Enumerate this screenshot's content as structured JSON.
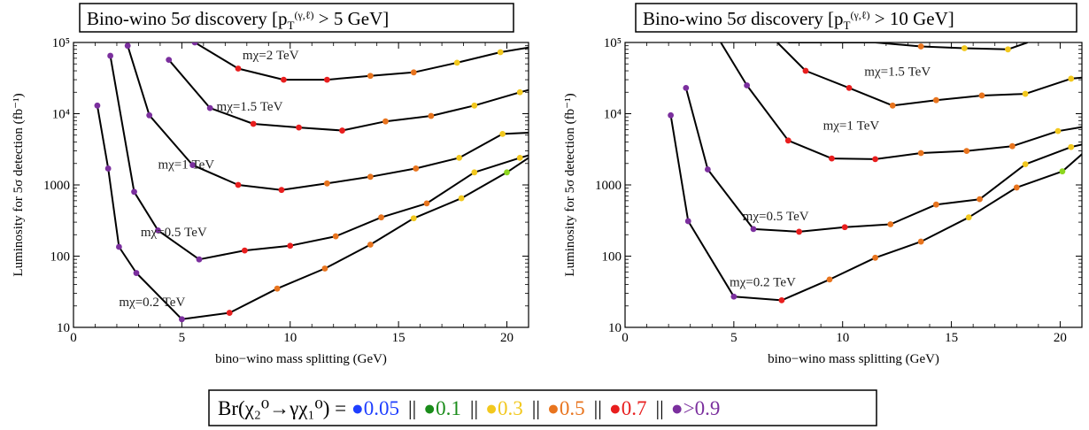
{
  "chart_data": [
    {
      "type": "line",
      "title": "Bino-wino 5σ discovery [pT(γ,ℓ) > 5 GeV]",
      "title_parts": {
        "main": "Bino-wino 5σ discovery [p",
        "sub": "T",
        "sup": "(γ,ℓ)",
        "tail": " > 5 GeV]"
      },
      "xlabel": "bino−wino mass splitting (GeV)",
      "ylabel": "Luminosity for 5σ detection (fb⁻¹)",
      "xlim": [
        0,
        21
      ],
      "ylim": [
        10,
        100000
      ],
      "yscale": "log",
      "xticks": [
        0,
        5,
        10,
        15,
        20
      ],
      "yticks": [
        10,
        100,
        1000,
        10000,
        100000
      ],
      "ytick_labels": [
        "10",
        "100",
        "1000",
        "10⁴",
        "10⁵"
      ],
      "grid": false,
      "series": [
        {
          "name": "mχ=0.2 TeV",
          "label_at": [
            2.1,
            20
          ],
          "points": [
            [
              1.1,
              13000,
              "purple"
            ],
            [
              1.6,
              1700,
              "purple"
            ],
            [
              2.1,
              135,
              "purple"
            ],
            [
              2.9,
              58,
              "purple"
            ],
            [
              5.0,
              13,
              "purple"
            ],
            [
              7.2,
              16,
              "red"
            ],
            [
              9.4,
              35,
              "orange"
            ],
            [
              11.6,
              67,
              "orange"
            ],
            [
              13.7,
              145,
              "orange"
            ],
            [
              15.7,
              340,
              "yellow"
            ],
            [
              17.9,
              650,
              "yellow"
            ],
            [
              20.0,
              1500,
              "green"
            ],
            [
              21.0,
              2400,
              "none"
            ]
          ]
        },
        {
          "name": "mχ=0.5 TeV",
          "label_at": [
            3.1,
            190
          ],
          "points": [
            [
              1.7,
              65000,
              "purple"
            ],
            [
              2.8,
              800,
              "purple"
            ],
            [
              3.9,
              230,
              "purple"
            ],
            [
              5.8,
              90,
              "purple"
            ],
            [
              7.9,
              120,
              "red"
            ],
            [
              10.0,
              140,
              "red"
            ],
            [
              12.1,
              190,
              "orange"
            ],
            [
              14.2,
              350,
              "orange"
            ],
            [
              16.3,
              550,
              "orange"
            ],
            [
              18.5,
              1500,
              "yellow"
            ],
            [
              20.6,
              2400,
              "yellow"
            ],
            [
              21.0,
              2600,
              "none"
            ]
          ]
        },
        {
          "name": "mχ=1 TeV",
          "label_at": [
            3.9,
            1700
          ],
          "points": [
            [
              2.5,
              90000,
              "purple"
            ],
            [
              3.5,
              9500,
              "purple"
            ],
            [
              5.5,
              1900,
              "purple"
            ],
            [
              7.6,
              1000,
              "red"
            ],
            [
              9.6,
              850,
              "red"
            ],
            [
              11.7,
              1050,
              "orange"
            ],
            [
              13.7,
              1300,
              "orange"
            ],
            [
              15.8,
              1700,
              "orange"
            ],
            [
              17.8,
              2400,
              "yellow"
            ],
            [
              19.8,
              5200,
              "yellow"
            ],
            [
              21.0,
              5400,
              "none"
            ]
          ]
        },
        {
          "name": "mχ=1.5 TeV",
          "label_at": [
            6.6,
            11000
          ],
          "points": [
            [
              4.4,
              57000,
              "purple"
            ],
            [
              6.3,
              12000,
              "purple"
            ],
            [
              8.3,
              7200,
              "red"
            ],
            [
              10.4,
              6400,
              "red"
            ],
            [
              12.4,
              5800,
              "red"
            ],
            [
              14.4,
              7800,
              "orange"
            ],
            [
              16.5,
              9300,
              "orange"
            ],
            [
              18.5,
              13000,
              "yellow"
            ],
            [
              20.6,
              20000,
              "yellow"
            ],
            [
              21.0,
              21500,
              "none"
            ]
          ]
        },
        {
          "name": "mχ=2 TeV",
          "label_at": [
            7.8,
            58000
          ],
          "points": [
            [
              5.6,
              100000,
              "purple"
            ],
            [
              7.6,
              43000,
              "red"
            ],
            [
              9.7,
              30000,
              "red"
            ],
            [
              11.7,
              30000,
              "red"
            ],
            [
              13.7,
              34000,
              "orange"
            ],
            [
              15.7,
              38000,
              "orange"
            ],
            [
              17.7,
              52000,
              "yellow"
            ],
            [
              19.7,
              73000,
              "yellow"
            ],
            [
              21.0,
              85000,
              "none"
            ]
          ]
        }
      ]
    },
    {
      "type": "line",
      "title": "Bino-wino 5σ discovery [pT(γ,ℓ) > 10 GeV]",
      "title_parts": {
        "main": "Bino-wino 5σ discovery [p",
        "sub": "T",
        "sup": "(γ,ℓ)",
        "tail": " > 10 GeV]"
      },
      "xlabel": "bino−wino mass splitting (GeV)",
      "ylabel": "Luminosity for 5σ detection (fb⁻¹)",
      "xlim": [
        0,
        21
      ],
      "ylim": [
        10,
        100000
      ],
      "yscale": "log",
      "xticks": [
        0,
        5,
        10,
        15,
        20
      ],
      "yticks": [
        10,
        100,
        1000,
        10000,
        100000
      ],
      "ytick_labels": [
        "10",
        "100",
        "1000",
        "10⁴",
        "10⁵"
      ],
      "grid": false,
      "series": [
        {
          "name": "mχ=0.2 TeV",
          "label_at": [
            4.8,
            38
          ],
          "points": [
            [
              2.1,
              9500,
              "purple"
            ],
            [
              2.9,
              310,
              "purple"
            ],
            [
              5.0,
              27,
              "purple"
            ],
            [
              7.2,
              24,
              "red"
            ],
            [
              9.4,
              47,
              "orange"
            ],
            [
              11.5,
              95,
              "orange"
            ],
            [
              13.6,
              160,
              "orange"
            ],
            [
              15.8,
              350,
              "yellow"
            ],
            [
              18.0,
              920,
              "orange"
            ],
            [
              20.1,
              1550,
              "green"
            ],
            [
              21.0,
              2700,
              "none"
            ]
          ]
        },
        {
          "name": "mχ=0.5 TeV",
          "label_at": [
            5.4,
            320
          ],
          "points": [
            [
              2.8,
              23000,
              "purple"
            ],
            [
              3.8,
              1650,
              "purple"
            ],
            [
              5.9,
              240,
              "purple"
            ],
            [
              8.0,
              220,
              "red"
            ],
            [
              10.1,
              255,
              "red"
            ],
            [
              12.2,
              280,
              "orange"
            ],
            [
              14.3,
              530,
              "orange"
            ],
            [
              16.3,
              630,
              "orange"
            ],
            [
              18.4,
              1950,
              "yellow"
            ],
            [
              20.5,
              3400,
              "yellow"
            ],
            [
              21.0,
              3700,
              "none"
            ]
          ]
        },
        {
          "name": "mχ=1 TeV",
          "label_at": [
            9.1,
            6000
          ],
          "points": [
            [
              4.4,
              100000,
              "none"
            ],
            [
              5.6,
              25000,
              "purple"
            ],
            [
              7.5,
              4200,
              "red"
            ],
            [
              9.5,
              2350,
              "red"
            ],
            [
              11.5,
              2300,
              "red"
            ],
            [
              13.6,
              2800,
              "orange"
            ],
            [
              15.7,
              3000,
              "orange"
            ],
            [
              17.8,
              3500,
              "orange"
            ],
            [
              19.9,
              5700,
              "yellow"
            ],
            [
              21.0,
              6500,
              "none"
            ]
          ]
        },
        {
          "name": "mχ=1.5 TeV",
          "label_at": [
            11.0,
            34000
          ],
          "points": [
            [
              7.0,
              100000,
              "none"
            ],
            [
              8.3,
              40000,
              "red"
            ],
            [
              10.3,
              23000,
              "red"
            ],
            [
              12.3,
              13000,
              "orange"
            ],
            [
              14.3,
              15500,
              "orange"
            ],
            [
              16.4,
              18000,
              "orange"
            ],
            [
              18.4,
              19000,
              "yellow"
            ],
            [
              20.5,
              31000,
              "yellow"
            ],
            [
              21.0,
              32000,
              "none"
            ]
          ]
        },
        {
          "name": "mχ=2 TeV",
          "label_at": null,
          "points": [
            [
              7.5,
              100000,
              "none"
            ],
            [
              11.5,
              100000,
              "none"
            ],
            [
              13.6,
              88000,
              "orange"
            ],
            [
              15.6,
              83000,
              "yellow"
            ],
            [
              17.6,
              80000,
              "yellow"
            ],
            [
              18.5,
              100000,
              "none"
            ]
          ]
        }
      ]
    }
  ],
  "legend": {
    "prefix": "Br(χ₂⁰→γχ₁⁰) = ",
    "items": [
      {
        "label": "0.05",
        "color": "#1f3fff"
      },
      {
        "label": "0.1",
        "color": "#1a8c1a"
      },
      {
        "label": "0.3",
        "color": "#f2c81e"
      },
      {
        "label": "0.5",
        "color": "#e8741e"
      },
      {
        "label": "0.7",
        "color": "#e81e1e"
      },
      {
        "label": ">0.9",
        "color": "#7b2f9e"
      }
    ],
    "separator": "||"
  },
  "colors": {
    "purple": "#7b2f9e",
    "red": "#e81e1e",
    "orange": "#e8741e",
    "yellow": "#f2c81e",
    "green": "#8cd61e",
    "blue": "#1f3fff"
  }
}
